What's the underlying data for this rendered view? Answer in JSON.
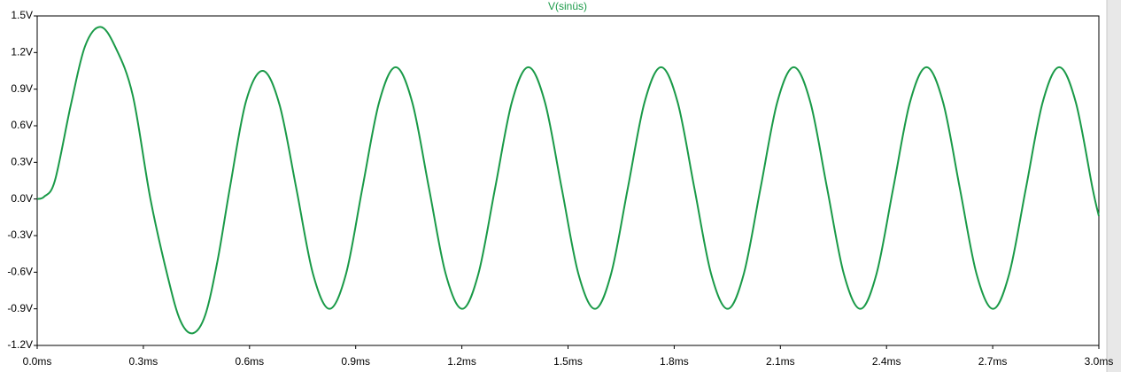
{
  "chart_data": {
    "type": "line",
    "x": [
      0.0,
      0.02,
      0.05,
      0.095,
      0.135,
      0.178,
      0.22,
      0.27,
      0.32,
      0.37,
      0.405,
      0.44,
      0.475,
      0.51,
      0.545,
      0.59,
      0.638,
      0.685,
      0.732,
      0.779,
      0.826,
      0.873,
      0.919,
      0.966,
      1.013,
      1.06,
      1.107,
      1.154,
      1.201,
      1.247,
      1.294,
      1.341,
      1.388,
      1.435,
      1.482,
      1.529,
      1.576,
      1.622,
      1.669,
      1.716,
      1.763,
      1.81,
      1.857,
      1.904,
      1.951,
      1.997,
      2.044,
      2.091,
      2.138,
      2.185,
      2.232,
      2.279,
      2.326,
      2.372,
      2.419,
      2.466,
      2.513,
      2.56,
      2.607,
      2.654,
      2.701,
      2.747,
      2.794,
      2.841,
      2.888,
      2.935,
      2.982,
      3.0
    ],
    "series": [
      {
        "name": "V(sinüs)",
        "color": "#1a9a48",
        "values": [
          0.0,
          0.02,
          0.15,
          0.77,
          1.25,
          1.41,
          1.25,
          0.85,
          0.0,
          -0.65,
          -1.0,
          -1.1,
          -0.95,
          -0.5,
          0.1,
          0.8,
          1.05,
          0.77,
          0.09,
          -0.61,
          -0.9,
          -0.61,
          0.09,
          0.79,
          1.08,
          0.79,
          0.09,
          -0.61,
          -0.9,
          -0.61,
          0.09,
          0.79,
          1.08,
          0.79,
          0.09,
          -0.61,
          -0.9,
          -0.61,
          0.09,
          0.79,
          1.08,
          0.79,
          0.09,
          -0.61,
          -0.9,
          -0.61,
          0.09,
          0.79,
          1.08,
          0.79,
          0.09,
          -0.61,
          -0.9,
          -0.61,
          0.09,
          0.79,
          1.08,
          0.79,
          0.09,
          -0.61,
          -0.9,
          -0.61,
          0.09,
          0.79,
          1.08,
          0.79,
          0.09,
          -0.14
        ]
      }
    ],
    "xlim": [
      0,
      3
    ],
    "xticks": [
      {
        "value": 0,
        "label": "0.0ms"
      },
      {
        "value": 0.3,
        "label": "0.3ms"
      },
      {
        "value": 0.6,
        "label": "0.6ms"
      },
      {
        "value": 0.9,
        "label": "0.9ms"
      },
      {
        "value": 1.2,
        "label": "1.2ms"
      },
      {
        "value": 1.5,
        "label": "1.5ms"
      },
      {
        "value": 1.8,
        "label": "1.8ms"
      },
      {
        "value": 2.1,
        "label": "2.1ms"
      },
      {
        "value": 2.4,
        "label": "2.4ms"
      },
      {
        "value": 2.7,
        "label": "2.7ms"
      },
      {
        "value": 3.0,
        "label": "3.0ms"
      }
    ],
    "ylim": [
      -1.2,
      1.5
    ],
    "yticks": [
      {
        "value": 1.5,
        "label": "1.5V"
      },
      {
        "value": 1.2,
        "label": "1.2V"
      },
      {
        "value": 0.9,
        "label": "0.9V"
      },
      {
        "value": 0.6,
        "label": "0.6V"
      },
      {
        "value": 0.3,
        "label": "0.3V"
      },
      {
        "value": 0,
        "label": "0.0V"
      },
      {
        "value": -0.3,
        "label": "-0.3V"
      },
      {
        "value": -0.6,
        "label": "-0.6V"
      },
      {
        "value": -0.9,
        "label": "-0.9V"
      },
      {
        "value": -1.2,
        "label": "-1.2V"
      }
    ],
    "grid": false
  }
}
